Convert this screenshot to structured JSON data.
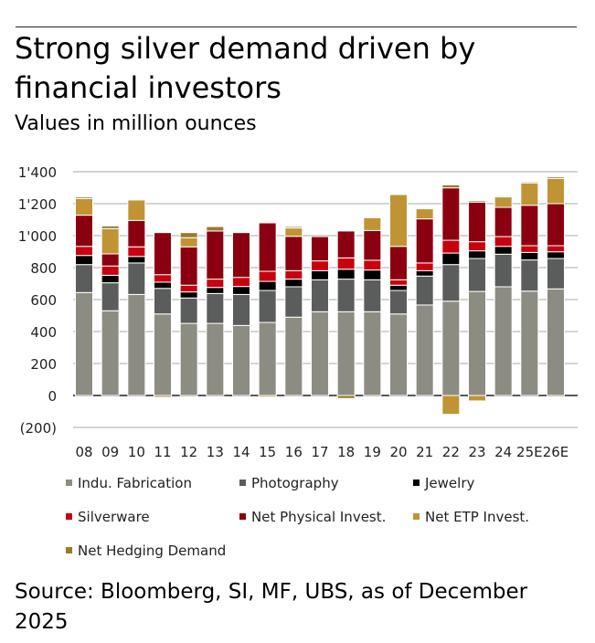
{
  "title": "Strong silver demand driven by financial investors",
  "subtitle": "Values in million ounces",
  "source": "Source: Bloomberg, SI, MF, UBS, as of December 2025",
  "chart_data": {
    "type": "bar",
    "stacked": true,
    "title": "Strong silver demand driven by financial investors",
    "ylabel": "Values in million ounces",
    "ylim": [
      -200,
      1400
    ],
    "yticks": [
      1400,
      1200,
      1000,
      800,
      600,
      400,
      200,
      0,
      -200
    ],
    "ytick_labels": [
      "1'400",
      "1'200",
      "1'000",
      "800",
      "600",
      "400",
      "200",
      "0",
      "(200)"
    ],
    "grid": true,
    "legend_position": "bottom",
    "categories": [
      "08",
      "09",
      "10",
      "11",
      "12",
      "13",
      "14",
      "15",
      "16",
      "17",
      "18",
      "19",
      "20",
      "21",
      "22",
      "23",
      "24",
      "25E",
      "26E"
    ],
    "series": [
      {
        "name": "Indu. Fabrication",
        "color": "#8c8c82",
        "values": [
          644,
          530,
          632,
          510,
          451,
          451,
          438,
          457,
          490,
          524,
          524,
          524,
          510,
          566,
          590,
          651,
          680,
          653,
          667
        ]
      },
      {
        "name": "Photography",
        "color": "#5b5c5c",
        "values": [
          175,
          175,
          197,
          160,
          159,
          187,
          194,
          200,
          190,
          200,
          204,
          200,
          147,
          181,
          229,
          206,
          204,
          195,
          190
        ]
      },
      {
        "name": "Jewelry",
        "color": "#000000",
        "values": [
          57,
          47,
          41,
          39,
          38,
          38,
          50,
          57,
          48,
          57,
          62,
          61,
          33,
          34,
          72,
          48,
          49,
          47,
          42
        ]
      },
      {
        "name": "Silverware",
        "color": "#c8000f",
        "values": [
          57,
          58,
          60,
          47,
          42,
          52,
          57,
          63,
          53,
          61,
          71,
          61,
          34,
          48,
          80,
          57,
          61,
          42,
          38
        ]
      },
      {
        "name": "Net Physical Invest.",
        "color": "#8b0010",
        "values": [
          195,
          76,
          165,
          263,
          240,
          301,
          280,
          303,
          215,
          152,
          168,
          186,
          209,
          276,
          328,
          248,
          183,
          253,
          263
        ]
      },
      {
        "name": "Net ETP Invest.",
        "color": "#c09434",
        "values": [
          104,
          158,
          128,
          0,
          57,
          0,
          0,
          -10,
          52,
          0,
          0,
          80,
          324,
          63,
          -118,
          -34,
          65,
          140,
          158
        ]
      },
      {
        "name": "Net Hedging Demand",
        "color": "#9a7a30",
        "values": [
          10,
          17,
          0,
          -11,
          32,
          28,
          0,
          0,
          9,
          0,
          -19,
          0,
          0,
          0,
          19,
          9,
          0,
          7,
          10
        ]
      }
    ]
  }
}
